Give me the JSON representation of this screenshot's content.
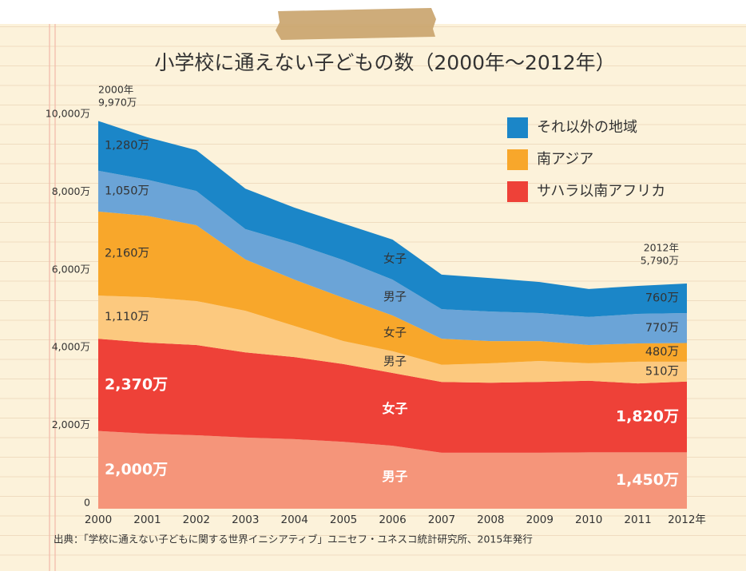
{
  "chart_data": {
    "type": "stacked-area",
    "title": "小学校に通えない子どもの数（2000年～2012年）",
    "categories": [
      "2000",
      "2001",
      "2002",
      "2003",
      "2004",
      "2005",
      "2006",
      "2007",
      "2008",
      "2009",
      "2010",
      "2011",
      "2012年"
    ],
    "ylim": [
      0,
      10000
    ],
    "yticks": [
      0,
      {
        "value": 2000,
        "label": "2,000万"
      },
      {
        "value": 4000,
        "label": "4,000万"
      },
      {
        "value": 6000,
        "label": "6,000万"
      },
      {
        "value": 8000,
        "label": "8,000万"
      },
      {
        "value": 10000,
        "label": "10,000万"
      }
    ],
    "legend_position": "top-right",
    "series": [
      {
        "name": "サハラ以南アフリカ",
        "color": "#ee4138",
        "parts": [
          {
            "name": "男子",
            "color": "#f5957a",
            "values": [
              2000,
              1930,
              1890,
              1830,
              1790,
              1720,
              1620,
              1440,
              1440,
              1440,
              1450,
              1450,
              1450
            ],
            "value_labels": [
              "2,000万",
              null,
              null,
              null,
              null,
              null,
              null,
              null,
              null,
              null,
              null,
              null,
              "1,450万"
            ]
          },
          {
            "name": "女子",
            "color": "#ee4138",
            "values": [
              2370,
              2340,
              2320,
              2190,
              2110,
              2000,
              1870,
              1820,
              1800,
              1820,
              1840,
              1770,
              1820
            ],
            "value_labels": [
              "2,370万",
              null,
              null,
              null,
              null,
              null,
              null,
              null,
              null,
              null,
              null,
              null,
              "1,820万"
            ]
          }
        ]
      },
      {
        "name": "南アジア",
        "color": "#f8a72b",
        "parts": [
          {
            "name": "男子",
            "color": "#fcc97f",
            "values": [
              1110,
              1170,
              1130,
              1070,
              800,
              590,
              560,
              440,
              500,
              540,
              450,
              560,
              510
            ],
            "value_labels": [
              "1,110万",
              null,
              null,
              null,
              null,
              null,
              null,
              null,
              null,
              null,
              null,
              null,
              "510万"
            ]
          },
          {
            "name": "女子",
            "color": "#f8a72b",
            "values": [
              2160,
              2090,
              1950,
              1320,
              1190,
              1110,
              920,
              670,
              570,
              510,
              470,
              470,
              480
            ],
            "value_labels": [
              "2,160万",
              null,
              null,
              null,
              null,
              null,
              null,
              null,
              null,
              null,
              null,
              null,
              "480万"
            ]
          }
        ]
      },
      {
        "name": "それ以外の地域",
        "color": "#1b86c8",
        "parts": [
          {
            "name": "男子",
            "color": "#6ba4d7",
            "values": [
              1050,
              930,
              880,
              780,
              930,
              970,
              920,
              760,
              760,
              720,
              720,
              760,
              770
            ],
            "value_labels": [
              "1,050万",
              null,
              null,
              null,
              null,
              null,
              null,
              null,
              null,
              null,
              null,
              null,
              "770万"
            ]
          },
          {
            "name": "女子",
            "color": "#1b86c8",
            "values": [
              1280,
              1090,
              1050,
              1040,
              920,
              940,
              1030,
              890,
              860,
              800,
              720,
              720,
              760
            ],
            "value_labels": [
              "1,280万",
              null,
              null,
              null,
              null,
              null,
              null,
              null,
              null,
              null,
              null,
              null,
              "760万"
            ]
          }
        ]
      }
    ],
    "annotations": [
      {
        "lines": [
          "2000年",
          "9,970万"
        ]
      },
      {
        "lines": [
          "2012年",
          "5,790万"
        ]
      }
    ],
    "source": "出典：「学校に通えない子どもに関する世界イニシアティブ」ユニセフ・ユネスコ統計研究所、2015年発行"
  }
}
